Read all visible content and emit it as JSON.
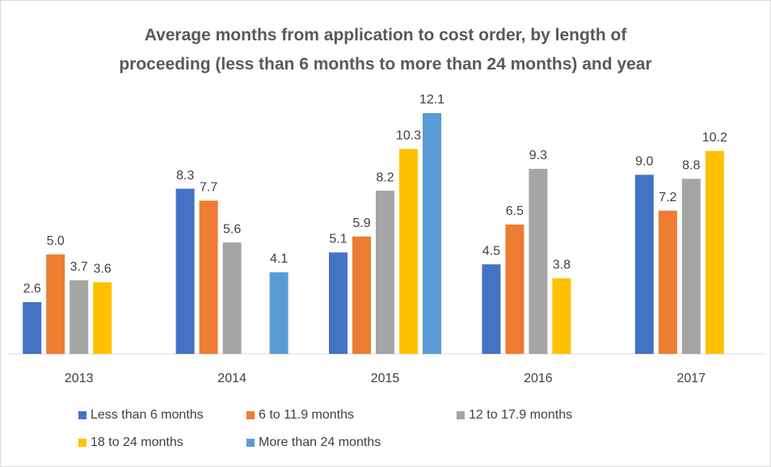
{
  "chart_data": {
    "type": "bar",
    "title": "Average months from application to cost order, by length of proceeding (less than 6 months to more than 24 months) and year",
    "categories": [
      "2013",
      "2014",
      "2015",
      "2016",
      "2017"
    ],
    "series": [
      {
        "name": "Less than 6 months",
        "color": "#4472c4",
        "values": [
          2.6,
          8.3,
          5.1,
          4.5,
          9.0
        ],
        "value_labels": [
          "2.6",
          "8.3",
          "5.1",
          "4.5",
          "9.0"
        ]
      },
      {
        "name": "6 to 11.9 months",
        "color": "#ed7d31",
        "values": [
          5.0,
          7.7,
          5.9,
          6.5,
          7.2
        ],
        "value_labels": [
          "5.0",
          "7.7",
          "5.9",
          "6.5",
          "7.2"
        ]
      },
      {
        "name": "12 to 17.9 months",
        "color": "#a5a5a5",
        "values": [
          3.7,
          5.6,
          8.2,
          9.3,
          8.8
        ],
        "value_labels": [
          "3.7",
          "5.6",
          "8.2",
          "9.3",
          "8.8"
        ]
      },
      {
        "name": "18 to 24 months",
        "color": "#ffc000",
        "values": [
          3.6,
          null,
          10.3,
          3.8,
          10.2
        ],
        "value_labels": [
          "3.6",
          null,
          "10.3",
          "3.8",
          "10.2"
        ]
      },
      {
        "name": "More than 24 months",
        "color": "#5b9bd5",
        "values": [
          null,
          4.1,
          12.1,
          null,
          null
        ],
        "value_labels": [
          null,
          "4.1",
          "12.1",
          null,
          null
        ]
      }
    ],
    "legend": "bottom"
  }
}
